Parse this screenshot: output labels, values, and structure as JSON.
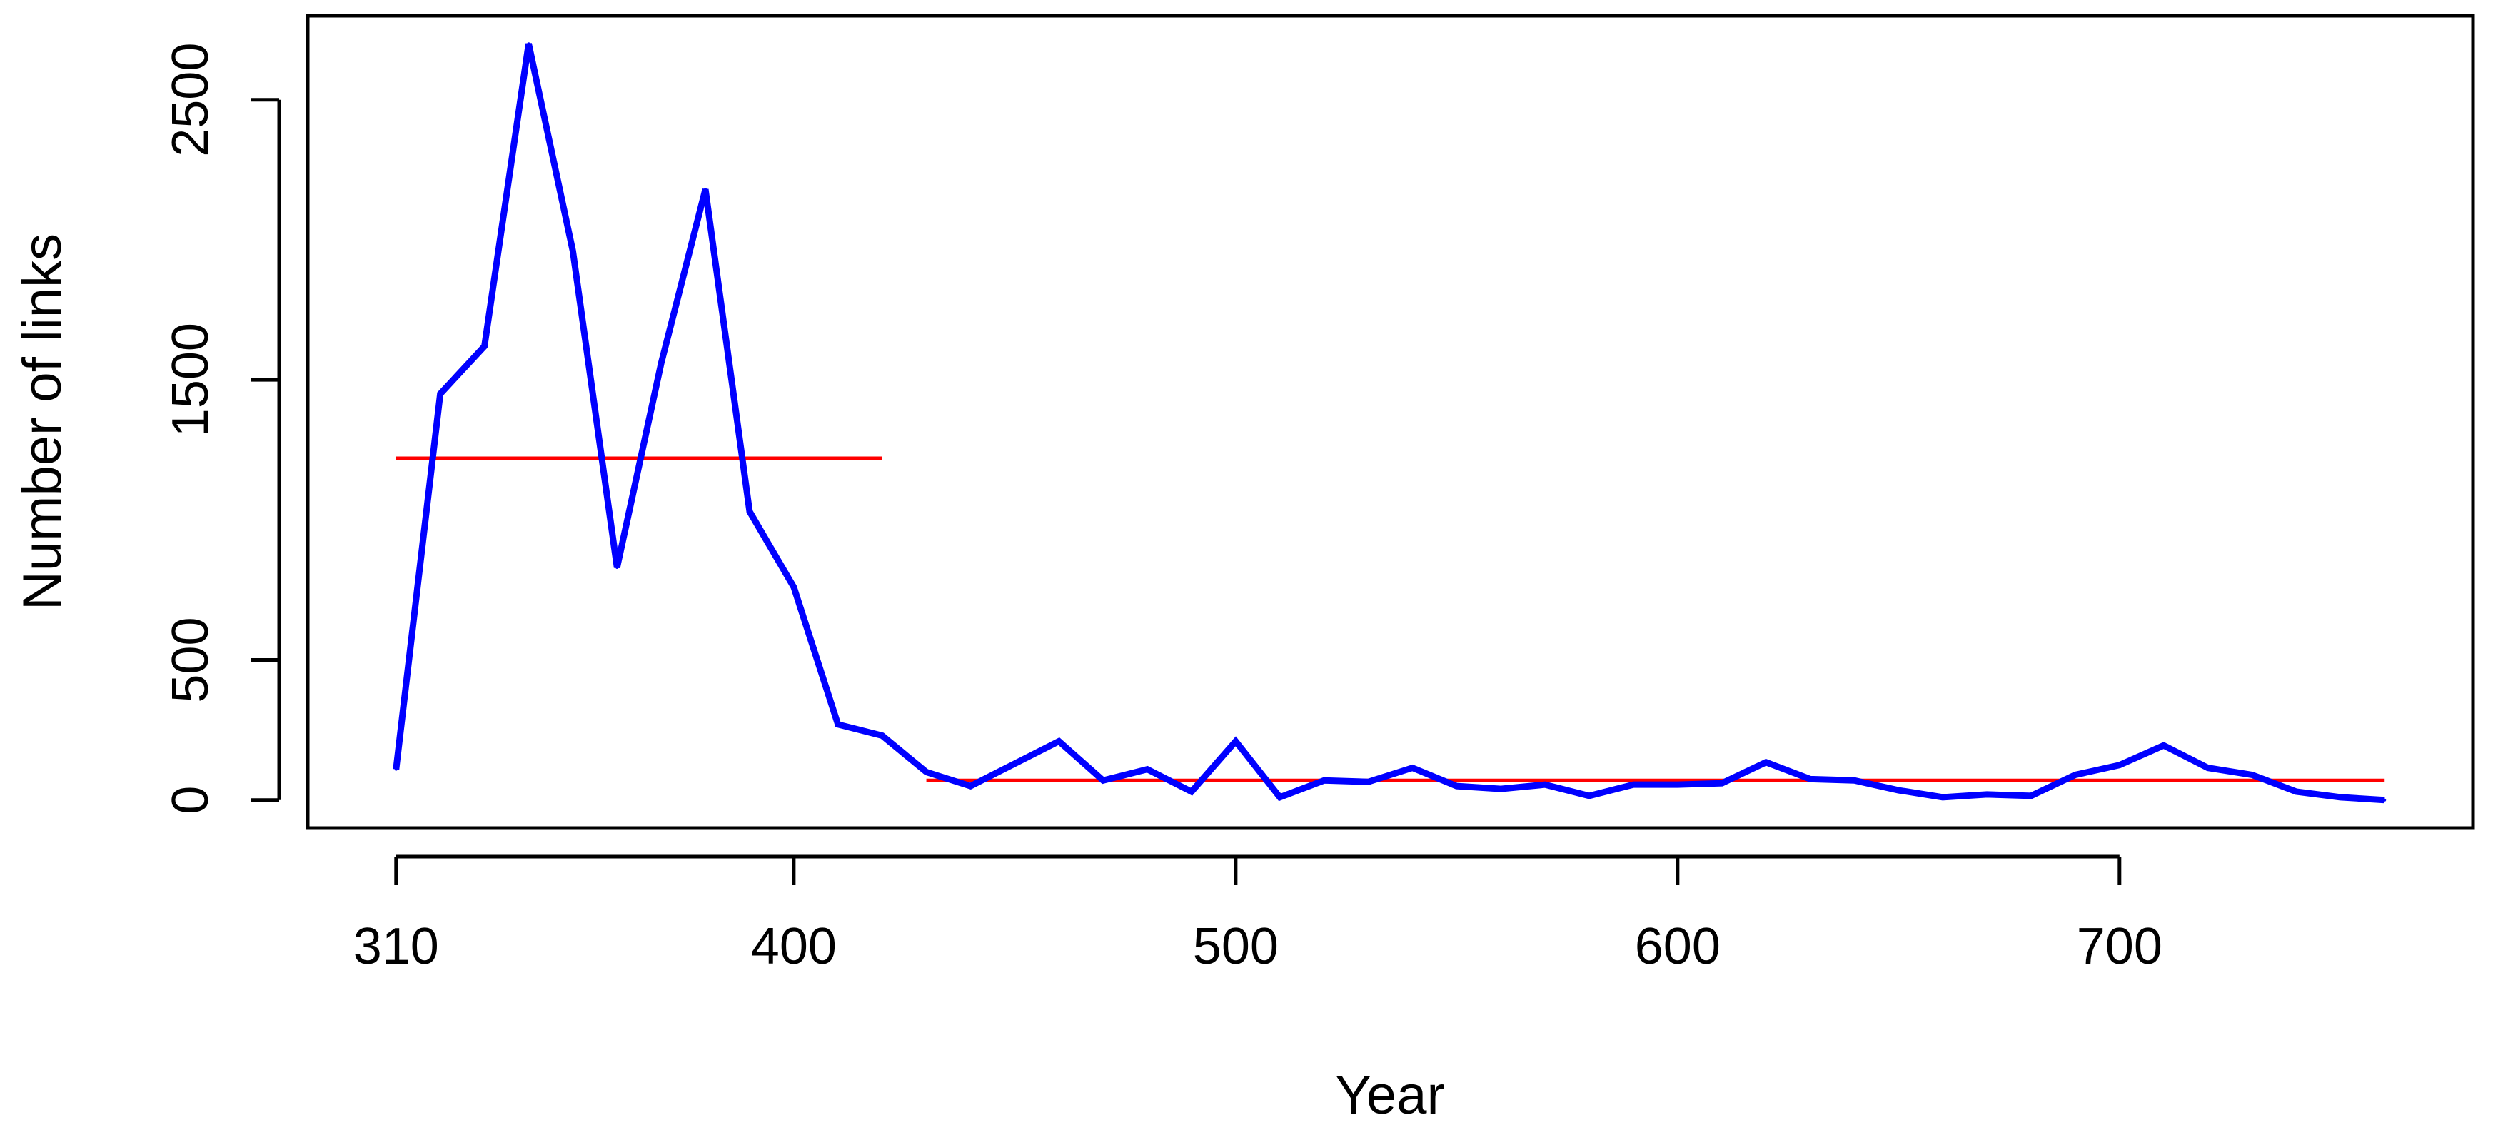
{
  "chart_data": {
    "type": "line",
    "title": "",
    "xlabel": "Year",
    "ylabel": "Number of links",
    "xlim": [
      290,
      780
    ],
    "ylim": [
      -100,
      2800
    ],
    "xticks": [
      310,
      400,
      500,
      600,
      700
    ],
    "yticks": [
      0,
      500,
      1500,
      2500
    ],
    "grid": false,
    "series": [
      {
        "color": "#0000ff",
        "x": [
          310,
          320,
          330,
          340,
          350,
          360,
          370,
          380,
          390,
          400,
          410,
          420,
          430,
          440,
          450,
          460,
          470,
          480,
          490,
          500,
          510,
          520,
          530,
          540,
          550,
          560,
          570,
          580,
          590,
          600,
          610,
          620,
          630,
          640,
          650,
          660,
          670,
          680,
          690,
          700,
          710,
          720,
          730,
          740,
          750,
          760
        ],
        "y": [
          110,
          1450,
          1620,
          2700,
          1960,
          830,
          1560,
          2180,
          1030,
          760,
          270,
          230,
          100,
          50,
          130,
          210,
          70,
          110,
          30,
          210,
          10,
          70,
          65,
          115,
          50,
          40,
          55,
          15,
          55,
          55,
          60,
          135,
          75,
          70,
          35,
          10,
          20,
          15,
          90,
          125,
          195,
          115,
          90,
          30,
          10,
          0
        ]
      }
    ],
    "segments": [
      {
        "color": "#ff0000",
        "x": [
          310,
          420
        ],
        "y": 1220
      },
      {
        "color": "#ff0000",
        "x": [
          430,
          760
        ],
        "y": 70
      }
    ]
  }
}
